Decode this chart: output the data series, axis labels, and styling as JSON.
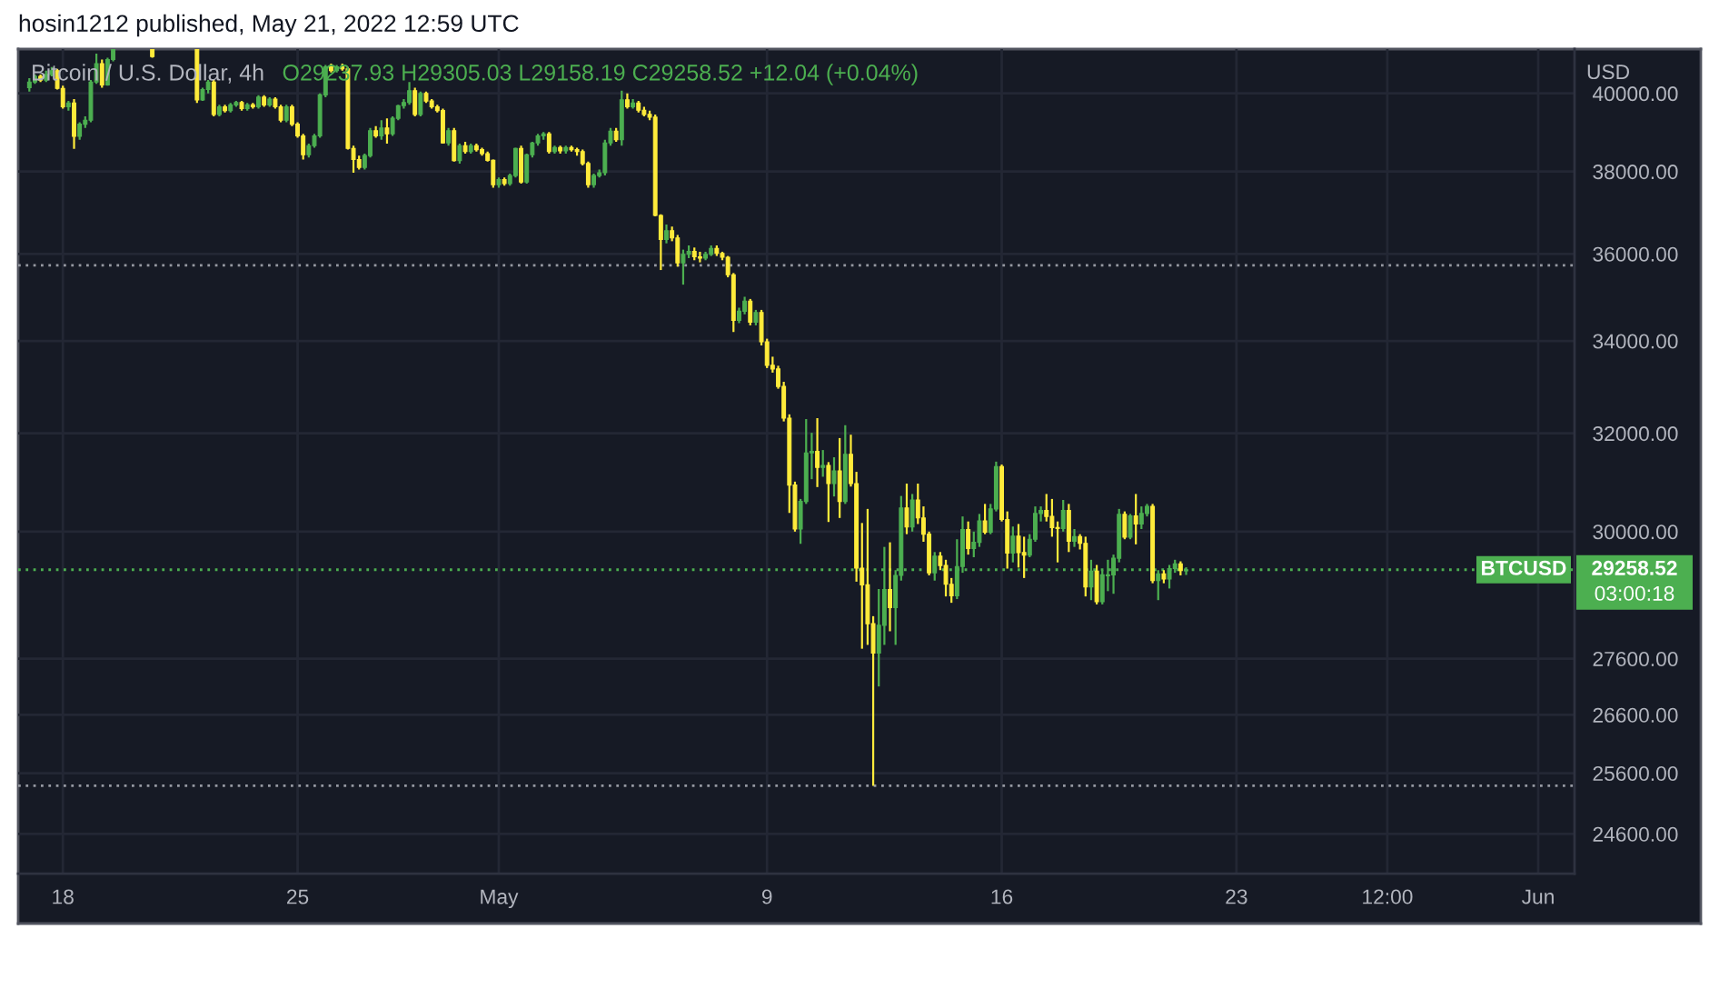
{
  "chart_data": {
    "type": "candlestick",
    "title": "Bitcoin / U.S. Dollar, 4h",
    "subtitle": "O29237.93 H29305.03 L29158.19 C29258.52 +12.04 (+0.04%)",
    "ylabel": "USD",
    "annotations": [
      "hosin1212 published, May 21, 2022 12:59 UTC",
      "29258.52",
      "03:00:18"
    ],
    "log": true,
    "grid": true,
    "xlim": [
      "2022-04-16T16:00",
      "2022-06-02T02:00"
    ],
    "xticks": [
      {
        "value": "2022-04-18",
        "label": "18"
      },
      {
        "value": "2022-04-25",
        "label": "25"
      },
      {
        "value": "2022-05-01",
        "label": "May"
      },
      {
        "value": "2022-05-09",
        "label": "9"
      },
      {
        "value": "2022-05-16",
        "label": "16"
      },
      {
        "value": "2022-05-23",
        "label": "23"
      },
      {
        "value": "2022-05-27T12:00",
        "label": "12:00"
      },
      {
        "value": "2022-06-01",
        "label": "Jun"
      }
    ],
    "ylim": [
      23965,
      41180
    ],
    "yticks": [
      {
        "value": 40000,
        "label": "40000.00"
      },
      {
        "value": 38000,
        "label": "38000.00"
      },
      {
        "value": 36000,
        "label": "36000.00"
      },
      {
        "value": 34000,
        "label": "34000.00"
      },
      {
        "value": 32000,
        "label": "32000.00"
      },
      {
        "value": 30000,
        "label": "30000.00"
      },
      {
        "value": 27600,
        "label": "27600.00"
      },
      {
        "value": 26600,
        "label": "26600.00"
      },
      {
        "value": 25600,
        "label": "25600.00"
      },
      {
        "value": 24600,
        "label": "24600.00"
      }
    ],
    "ref_lines": [
      {
        "axis": "y",
        "value": 35730,
        "color": "#9598a1",
        "line_style": "dotted"
      },
      {
        "axis": "y",
        "value": 25390,
        "color": "#9598a1",
        "line_style": "dotted"
      },
      {
        "axis": "y",
        "value": 29258.52,
        "label": "BTCUSD",
        "color": "#4caf50",
        "line_style": "dotted"
      }
    ],
    "x": [
      "2022-04-17T00:00",
      "2022-04-17T04:00",
      "2022-04-17T08:00",
      "2022-04-17T12:00",
      "2022-04-17T16:00",
      "2022-04-17T20:00",
      "2022-04-18T00:00",
      "2022-04-18T04:00",
      "2022-04-18T08:00",
      "2022-04-18T12:00",
      "2022-04-18T16:00",
      "2022-04-18T20:00",
      "2022-04-19T00:00",
      "2022-04-19T04:00",
      "2022-04-19T08:00",
      "2022-04-19T12:00",
      "2022-04-20T16:00",
      "2022-04-22T00:00",
      "2022-04-22T04:00",
      "2022-04-22T08:00",
      "2022-04-22T12:00",
      "2022-04-22T16:00",
      "2022-04-22T20:00",
      "2022-04-23T00:00",
      "2022-04-23T04:00",
      "2022-04-23T08:00",
      "2022-04-23T12:00",
      "2022-04-23T16:00",
      "2022-04-23T20:00",
      "2022-04-24T00:00",
      "2022-04-24T04:00",
      "2022-04-24T08:00",
      "2022-04-24T12:00",
      "2022-04-24T16:00",
      "2022-04-24T20:00",
      "2022-04-25T00:00",
      "2022-04-25T04:00",
      "2022-04-25T08:00",
      "2022-04-25T12:00",
      "2022-04-25T16:00",
      "2022-04-25T20:00",
      "2022-04-26T00:00",
      "2022-04-26T04:00",
      "2022-04-26T08:00",
      "2022-04-26T12:00",
      "2022-04-26T16:00",
      "2022-04-26T20:00",
      "2022-04-27T00:00",
      "2022-04-27T04:00",
      "2022-04-27T08:00",
      "2022-04-27T12:00",
      "2022-04-27T16:00",
      "2022-04-27T20:00",
      "2022-04-28T00:00",
      "2022-04-28T04:00",
      "2022-04-28T08:00",
      "2022-04-28T12:00",
      "2022-04-28T16:00",
      "2022-04-28T20:00",
      "2022-04-29T00:00",
      "2022-04-29T04:00",
      "2022-04-29T08:00",
      "2022-04-29T12:00",
      "2022-04-29T16:00",
      "2022-04-29T20:00",
      "2022-04-30T00:00",
      "2022-04-30T04:00",
      "2022-04-30T08:00",
      "2022-04-30T12:00",
      "2022-04-30T16:00",
      "2022-04-30T20:00",
      "2022-05-01T00:00",
      "2022-05-01T04:00",
      "2022-05-01T08:00",
      "2022-05-01T12:00",
      "2022-05-01T16:00",
      "2022-05-01T20:00",
      "2022-05-02T00:00",
      "2022-05-02T04:00",
      "2022-05-02T08:00",
      "2022-05-02T12:00",
      "2022-05-02T16:00",
      "2022-05-02T20:00",
      "2022-05-03T00:00",
      "2022-05-03T04:00",
      "2022-05-03T08:00",
      "2022-05-03T12:00",
      "2022-05-03T16:00",
      "2022-05-03T20:00",
      "2022-05-04T00:00",
      "2022-05-04T04:00",
      "2022-05-04T08:00",
      "2022-05-04T12:00",
      "2022-05-04T16:00",
      "2022-05-04T20:00",
      "2022-05-05T00:00",
      "2022-05-05T04:00",
      "2022-05-05T08:00",
      "2022-05-05T12:00",
      "2022-05-05T16:00",
      "2022-05-05T20:00",
      "2022-05-06T00:00",
      "2022-05-06T04:00",
      "2022-05-06T08:00",
      "2022-05-06T12:00",
      "2022-05-06T16:00",
      "2022-05-06T20:00",
      "2022-05-07T00:00",
      "2022-05-07T04:00",
      "2022-05-07T08:00",
      "2022-05-07T12:00",
      "2022-05-07T16:00",
      "2022-05-07T20:00",
      "2022-05-08T00:00",
      "2022-05-08T04:00",
      "2022-05-08T08:00",
      "2022-05-08T12:00",
      "2022-05-08T16:00",
      "2022-05-08T20:00",
      "2022-05-09T00:00",
      "2022-05-09T04:00",
      "2022-05-09T08:00",
      "2022-05-09T12:00",
      "2022-05-09T16:00",
      "2022-05-09T20:00",
      "2022-05-10T00:00",
      "2022-05-10T04:00",
      "2022-05-10T08:00",
      "2022-05-10T12:00",
      "2022-05-10T16:00",
      "2022-05-10T20:00",
      "2022-05-11T00:00",
      "2022-05-11T04:00",
      "2022-05-11T08:00",
      "2022-05-11T12:00",
      "2022-05-11T16:00",
      "2022-05-11T20:00",
      "2022-05-12T00:00",
      "2022-05-12T04:00",
      "2022-05-12T08:00",
      "2022-05-12T12:00",
      "2022-05-12T16:00",
      "2022-05-12T20:00",
      "2022-05-13T00:00",
      "2022-05-13T04:00",
      "2022-05-13T08:00",
      "2022-05-13T12:00",
      "2022-05-13T16:00",
      "2022-05-13T20:00",
      "2022-05-14T00:00",
      "2022-05-14T04:00",
      "2022-05-14T08:00",
      "2022-05-14T12:00",
      "2022-05-14T16:00",
      "2022-05-14T20:00",
      "2022-05-15T00:00",
      "2022-05-15T04:00",
      "2022-05-15T08:00",
      "2022-05-15T12:00",
      "2022-05-15T16:00",
      "2022-05-15T20:00",
      "2022-05-16T00:00",
      "2022-05-16T04:00",
      "2022-05-16T08:00",
      "2022-05-16T12:00",
      "2022-05-16T16:00",
      "2022-05-16T20:00",
      "2022-05-17T00:00",
      "2022-05-17T04:00",
      "2022-05-17T08:00",
      "2022-05-17T12:00",
      "2022-05-17T16:00",
      "2022-05-17T20:00",
      "2022-05-18T00:00",
      "2022-05-18T04:00",
      "2022-05-18T08:00",
      "2022-05-18T12:00",
      "2022-05-18T16:00",
      "2022-05-18T20:00",
      "2022-05-19T00:00",
      "2022-05-19T04:00",
      "2022-05-19T08:00",
      "2022-05-19T12:00",
      "2022-05-19T16:00",
      "2022-05-19T20:00",
      "2022-05-20T00:00",
      "2022-05-20T04:00",
      "2022-05-20T08:00",
      "2022-05-20T12:00",
      "2022-05-20T16:00",
      "2022-05-20T20:00",
      "2022-05-21T00:00",
      "2022-05-21T04:00",
      "2022-05-21T08:00",
      "2022-05-21T12:00"
    ],
    "ohlc": [
      [
        40150,
        40400,
        40050,
        40300
      ],
      [
        40300,
        40500,
        40250,
        40450
      ],
      [
        40450,
        40500,
        40300,
        40350
      ],
      [
        40350,
        40600,
        40300,
        40500
      ],
      [
        40500,
        40700,
        40450,
        40600
      ],
      [
        40600,
        40650,
        40100,
        40130
      ],
      [
        40130,
        40200,
        39600,
        39650
      ],
      [
        39650,
        39800,
        39550,
        39750
      ],
      [
        39750,
        39850,
        38570,
        38890
      ],
      [
        38890,
        39250,
        38800,
        39200
      ],
      [
        39200,
        39400,
        39100,
        39300
      ],
      [
        39300,
        40350,
        39250,
        40300
      ],
      [
        40300,
        41060,
        40250,
        40790
      ],
      [
        40790,
        40900,
        40150,
        40220
      ],
      [
        40220,
        40950,
        40200,
        40900
      ],
      [
        40900,
        41170,
        40850,
        41170
      ],
      [
        41170,
        41170,
        40950,
        40980
      ],
      [
        41170,
        41170,
        39750,
        39830
      ],
      [
        39830,
        40150,
        39800,
        40100
      ],
      [
        40100,
        40350,
        40000,
        40300
      ],
      [
        40300,
        40350,
        39400,
        39450
      ],
      [
        39450,
        39700,
        39400,
        39650
      ],
      [
        39650,
        39700,
        39500,
        39550
      ],
      [
        39550,
        39750,
        39500,
        39700
      ],
      [
        39700,
        39800,
        39650,
        39760
      ],
      [
        39760,
        39800,
        39550,
        39600
      ],
      [
        39600,
        39750,
        39550,
        39700
      ],
      [
        39700,
        39750,
        39600,
        39650
      ],
      [
        39650,
        39950,
        39600,
        39900
      ],
      [
        39900,
        39950,
        39650,
        39700
      ],
      [
        39700,
        39900,
        39650,
        39850
      ],
      [
        39850,
        39900,
        39600,
        39650
      ],
      [
        39650,
        39700,
        39250,
        39300
      ],
      [
        39300,
        39700,
        39250,
        39650
      ],
      [
        39650,
        39700,
        39150,
        39200
      ],
      [
        39200,
        39250,
        38850,
        38900
      ],
      [
        38900,
        38950,
        38300,
        38420
      ],
      [
        38420,
        38700,
        38350,
        38650
      ],
      [
        38650,
        38950,
        38600,
        38900
      ],
      [
        38900,
        40000,
        38850,
        39960
      ],
      [
        39960,
        40750,
        39900,
        40700
      ],
      [
        40700,
        40790,
        40550,
        40600
      ],
      [
        40600,
        40750,
        40550,
        40700
      ],
      [
        40700,
        40790,
        40600,
        40650
      ],
      [
        40650,
        40700,
        38550,
        38580
      ],
      [
        38580,
        38650,
        37970,
        38300
      ],
      [
        38300,
        38400,
        38050,
        38100
      ],
      [
        38100,
        38450,
        38050,
        38400
      ],
      [
        38400,
        39100,
        38350,
        39030
      ],
      [
        39030,
        39150,
        38850,
        38900
      ],
      [
        38900,
        39300,
        38800,
        39100
      ],
      [
        39100,
        39350,
        38700,
        38950
      ],
      [
        38950,
        39400,
        38900,
        39350
      ],
      [
        39350,
        39700,
        39300,
        39680
      ],
      [
        39680,
        39850,
        39600,
        39760
      ],
      [
        39760,
        40300,
        39700,
        40070
      ],
      [
        40070,
        40150,
        39400,
        39450
      ],
      [
        39450,
        40050,
        39400,
        40000
      ],
      [
        40000,
        40050,
        39750,
        39800
      ],
      [
        39800,
        39850,
        39600,
        39650
      ],
      [
        39650,
        39700,
        39500,
        39550
      ],
      [
        39550,
        39600,
        38700,
        38720
      ],
      [
        38720,
        39100,
        38650,
        39030
      ],
      [
        39030,
        39100,
        38250,
        38270
      ],
      [
        38270,
        38700,
        38200,
        38650
      ],
      [
        38650,
        38750,
        38450,
        38500
      ],
      [
        38500,
        38700,
        38450,
        38650
      ],
      [
        38650,
        38700,
        38500,
        38550
      ],
      [
        38550,
        38600,
        38400,
        38450
      ],
      [
        38450,
        38500,
        38250,
        38280
      ],
      [
        38280,
        38300,
        37600,
        37670
      ],
      [
        37670,
        37850,
        37600,
        37800
      ],
      [
        37800,
        37850,
        37650,
        37700
      ],
      [
        37700,
        37950,
        37650,
        37900
      ],
      [
        37900,
        38600,
        37850,
        38580
      ],
      [
        38580,
        38650,
        37700,
        37740
      ],
      [
        37740,
        38450,
        37700,
        38420
      ],
      [
        38420,
        38750,
        38350,
        38720
      ],
      [
        38720,
        38950,
        38650,
        38900
      ],
      [
        38900,
        39000,
        38800,
        38950
      ],
      [
        38950,
        39000,
        38450,
        38500
      ],
      [
        38500,
        38650,
        38450,
        38600
      ],
      [
        38600,
        38650,
        38450,
        38520
      ],
      [
        38520,
        38650,
        38450,
        38600
      ],
      [
        38600,
        38650,
        38500,
        38550
      ],
      [
        38550,
        38600,
        38400,
        38500
      ],
      [
        38500,
        38550,
        38150,
        38200
      ],
      [
        38200,
        38250,
        37600,
        37670
      ],
      [
        37670,
        37950,
        37600,
        37900
      ],
      [
        37900,
        38050,
        37850,
        37970
      ],
      [
        37970,
        38800,
        37900,
        38720
      ],
      [
        38720,
        39100,
        38650,
        39020
      ],
      [
        39020,
        39100,
        38750,
        38800
      ],
      [
        38800,
        40070,
        38650,
        39830
      ],
      [
        39830,
        40000,
        39600,
        39650
      ],
      [
        39650,
        39850,
        39600,
        39750
      ],
      [
        39750,
        39800,
        39500,
        39560
      ],
      [
        39560,
        39650,
        39400,
        39450
      ],
      [
        39450,
        39550,
        39300,
        39380
      ],
      [
        39380,
        39450,
        36900,
        36920
      ],
      [
        36920,
        36950,
        35620,
        36340
      ],
      [
        36340,
        36700,
        36250,
        36550
      ],
      [
        36550,
        36650,
        36300,
        36380
      ],
      [
        36380,
        36450,
        35700,
        35790
      ],
      [
        35790,
        36100,
        35280,
        35990
      ],
      [
        35990,
        36200,
        35900,
        36060
      ],
      [
        36060,
        36150,
        35850,
        35930
      ],
      [
        35930,
        36050,
        35800,
        35900
      ],
      [
        35900,
        36050,
        35850,
        35990
      ],
      [
        35990,
        36200,
        35950,
        36130
      ],
      [
        36130,
        36200,
        35950,
        36010
      ],
      [
        36010,
        36050,
        35850,
        35920
      ],
      [
        35920,
        35950,
        35450,
        35510
      ],
      [
        35510,
        35550,
        34200,
        34460
      ],
      [
        34460,
        34750,
        34400,
        34670
      ],
      [
        34670,
        35000,
        34600,
        34900
      ],
      [
        34900,
        34950,
        34350,
        34420
      ],
      [
        34420,
        34700,
        34350,
        34640
      ],
      [
        34640,
        34700,
        33900,
        33980
      ],
      [
        33980,
        34050,
        33400,
        33460
      ],
      [
        33460,
        33650,
        33300,
        33380
      ],
      [
        33380,
        33450,
        32950,
        33000
      ],
      [
        33000,
        33100,
        32250,
        32320
      ],
      [
        32320,
        32400,
        30370,
        30930
      ],
      [
        30930,
        31000,
        30000,
        30050
      ],
      [
        30050,
        30650,
        29760,
        30600
      ],
      [
        30600,
        32300,
        30550,
        31590
      ],
      [
        31590,
        32010,
        31050,
        31620
      ],
      [
        31620,
        32320,
        30890,
        31290
      ],
      [
        31290,
        31650,
        31100,
        31330
      ],
      [
        31330,
        31400,
        30190,
        30960
      ],
      [
        30960,
        31500,
        30700,
        31220
      ],
      [
        31220,
        31900,
        30270,
        30600
      ],
      [
        30600,
        32170,
        30550,
        31560
      ],
      [
        31560,
        31970,
        30900,
        30960
      ],
      [
        30960,
        31200,
        29030,
        29290
      ],
      [
        29290,
        30170,
        27780,
        28970
      ],
      [
        28970,
        30450,
        27850,
        28240
      ],
      [
        28240,
        28380,
        25390,
        27700
      ],
      [
        27700,
        28890,
        27100,
        28210
      ],
      [
        28210,
        29700,
        27850,
        28880
      ],
      [
        28880,
        29790,
        28100,
        28540
      ],
      [
        28540,
        29250,
        27850,
        29150
      ],
      [
        29150,
        30710,
        29050,
        30470
      ],
      [
        30470,
        30960,
        29950,
        30090
      ],
      [
        30090,
        30750,
        30000,
        30630
      ],
      [
        30630,
        30960,
        30150,
        30270
      ],
      [
        30270,
        30500,
        29800,
        29950
      ],
      [
        29950,
        30000,
        29150,
        29200
      ],
      [
        29200,
        29600,
        29050,
        29520
      ],
      [
        29520,
        29600,
        29250,
        29340
      ],
      [
        29340,
        29450,
        28750,
        28980
      ],
      [
        28980,
        29100,
        28630,
        28760
      ],
      [
        28760,
        29850,
        28700,
        29320
      ],
      [
        29320,
        30300,
        29200,
        30040
      ],
      [
        30040,
        30200,
        29550,
        29670
      ],
      [
        29670,
        30000,
        29500,
        29790
      ],
      [
        29790,
        30350,
        29700,
        30210
      ],
      [
        30210,
        30550,
        29950,
        29990
      ],
      [
        29990,
        30550,
        29950,
        30450
      ],
      [
        30450,
        31410,
        30400,
        31310
      ],
      [
        31310,
        31350,
        30200,
        30240
      ],
      [
        30240,
        30400,
        29280,
        29580
      ],
      [
        29580,
        30100,
        29400,
        29910
      ],
      [
        29910,
        30150,
        29300,
        29590
      ],
      [
        29590,
        29900,
        29100,
        29540
      ],
      [
        29540,
        29950,
        29500,
        29850
      ],
      [
        29850,
        30500,
        29800,
        30360
      ],
      [
        30360,
        30500,
        30200,
        30420
      ],
      [
        30420,
        30750,
        30200,
        30300
      ],
      [
        30300,
        30650,
        29900,
        30080
      ],
      [
        30080,
        30200,
        29400,
        30060
      ],
      [
        30060,
        30630,
        30000,
        30420
      ],
      [
        30420,
        30550,
        29600,
        29810
      ],
      [
        29810,
        30050,
        29700,
        29900
      ],
      [
        29900,
        29950,
        29650,
        29770
      ],
      [
        29770,
        29900,
        28750,
        28930
      ],
      [
        28930,
        29450,
        28680,
        29230
      ],
      [
        29230,
        29350,
        28600,
        28650
      ],
      [
        28650,
        29250,
        28600,
        29160
      ],
      [
        29140,
        29450,
        28850,
        29160
      ],
      [
        29160,
        29550,
        28800,
        29480
      ],
      [
        29480,
        30450,
        29400,
        30340
      ],
      [
        30340,
        30400,
        29850,
        29890
      ],
      [
        29890,
        30350,
        29850,
        30310
      ],
      [
        30310,
        30750,
        29750,
        30150
      ],
      [
        30150,
        30500,
        30050,
        30360
      ],
      [
        30360,
        30550,
        30300,
        30500
      ],
      [
        30500,
        30550,
        29000,
        29050
      ],
      [
        29050,
        29250,
        28680,
        29180
      ],
      [
        29180,
        29250,
        29000,
        29080
      ],
      [
        29080,
        29350,
        28900,
        29280
      ],
      [
        29280,
        29450,
        29200,
        29370
      ],
      [
        29370,
        29420,
        29150,
        29240
      ],
      [
        29237.93,
        29305.03,
        29158.19,
        29258.52
      ]
    ],
    "colors": [
      "#4caf50",
      "#4caf50",
      "#ffeb3b",
      "#4caf50",
      "#4caf50",
      "#ffeb3b",
      "#ffeb3b",
      "#4caf50",
      "#ffeb3b",
      "#4caf50",
      "#4caf50",
      "#4caf50",
      "#4caf50",
      "#ffeb3b",
      "#4caf50",
      "#4caf50",
      "#ffeb3b",
      "#ffeb3b",
      "#4caf50",
      "#4caf50",
      "#ffeb3b",
      "#4caf50",
      "#ffeb3b",
      "#4caf50",
      "#4caf50",
      "#ffeb3b",
      "#4caf50",
      "#ffeb3b",
      "#4caf50",
      "#ffeb3b",
      "#4caf50",
      "#ffeb3b",
      "#ffeb3b",
      "#4caf50",
      "#ffeb3b",
      "#ffeb3b",
      "#ffeb3b",
      "#4caf50",
      "#4caf50",
      "#4caf50",
      "#4caf50",
      "#ffeb3b",
      "#4caf50",
      "#ffeb3b",
      "#ffeb3b",
      "#ffeb3b",
      "#ffeb3b",
      "#4caf50",
      "#4caf50",
      "#ffeb3b",
      "#4caf50",
      "#ffeb3b",
      "#4caf50",
      "#4caf50",
      "#4caf50",
      "#4caf50",
      "#ffeb3b",
      "#4caf50",
      "#ffeb3b",
      "#ffeb3b",
      "#ffeb3b",
      "#ffeb3b",
      "#4caf50",
      "#ffeb3b",
      "#4caf50",
      "#ffeb3b",
      "#4caf50",
      "#ffeb3b",
      "#ffeb3b",
      "#ffeb3b",
      "#ffeb3b",
      "#4caf50",
      "#ffeb3b",
      "#4caf50",
      "#4caf50",
      "#ffeb3b",
      "#4caf50",
      "#4caf50",
      "#4caf50",
      "#4caf50",
      "#ffeb3b",
      "#4caf50",
      "#ffeb3b",
      "#4caf50",
      "#ffeb3b",
      "#ffeb3b",
      "#ffeb3b",
      "#ffeb3b",
      "#4caf50",
      "#4caf50",
      "#4caf50",
      "#4caf50",
      "#ffeb3b",
      "#4caf50",
      "#ffeb3b",
      "#4caf50",
      "#ffeb3b",
      "#ffeb3b",
      "#ffeb3b",
      "#ffeb3b",
      "#ffeb3b",
      "#4caf50",
      "#ffeb3b",
      "#ffeb3b",
      "#4caf50",
      "#4caf50",
      "#ffeb3b",
      "#ffeb3b",
      "#4caf50",
      "#4caf50",
      "#ffeb3b",
      "#ffeb3b",
      "#ffeb3b",
      "#ffeb3b",
      "#4caf50",
      "#4caf50",
      "#ffeb3b",
      "#4caf50",
      "#ffeb3b",
      "#ffeb3b",
      "#ffeb3b",
      "#ffeb3b",
      "#ffeb3b",
      "#ffeb3b",
      "#ffeb3b",
      "#4caf50",
      "#4caf50",
      "#4caf50",
      "#ffeb3b",
      "#4caf50",
      "#ffeb3b",
      "#4caf50",
      "#ffeb3b",
      "#4caf50",
      "#ffeb3b",
      "#ffeb3b",
      "#ffeb3b",
      "#ffeb3b",
      "#ffeb3b",
      "#4caf50",
      "#4caf50",
      "#ffeb3b",
      "#4caf50",
      "#4caf50",
      "#ffeb3b",
      "#4caf50",
      "#ffeb3b",
      "#ffeb3b",
      "#ffeb3b",
      "#4caf50",
      "#ffeb3b",
      "#ffeb3b",
      "#ffeb3b",
      "#4caf50",
      "#4caf50",
      "#ffeb3b",
      "#4caf50",
      "#4caf50",
      "#ffeb3b",
      "#4caf50",
      "#4caf50",
      "#ffeb3b",
      "#ffeb3b",
      "#4caf50",
      "#ffeb3b",
      "#ffeb3b",
      "#4caf50",
      "#4caf50",
      "#4caf50",
      "#ffeb3b",
      "#ffeb3b",
      "#ffeb3b",
      "#4caf50",
      "#ffeb3b",
      "#4caf50",
      "#ffeb3b",
      "#ffeb3b",
      "#4caf50",
      "#ffeb3b",
      "#4caf50",
      "#4caf50",
      "#4caf50",
      "#4caf50",
      "#ffeb3b",
      "#4caf50",
      "#ffeb3b",
      "#4caf50",
      "#4caf50",
      "#ffeb3b",
      "#4caf50",
      "#ffeb3b",
      "#4caf50",
      "#4caf50",
      "#ffeb3b",
      "#4caf50"
    ]
  }
}
